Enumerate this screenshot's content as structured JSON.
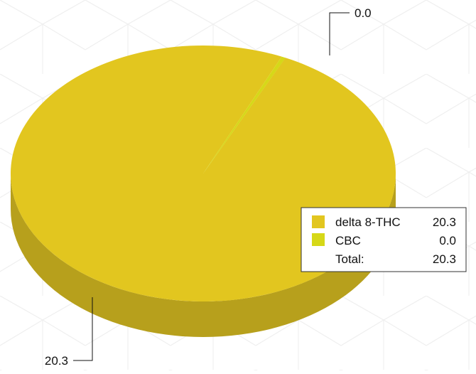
{
  "chart_data": {
    "type": "pie",
    "style": "3d",
    "series": [
      {
        "name": "delta 8-THC",
        "value": 20.3,
        "value_label": "20.3",
        "color": "#e2c61f",
        "side_color": "#b7a01c"
      },
      {
        "name": "CBC",
        "value": 0.0,
        "value_label": "0.0",
        "color": "#d6d818",
        "side_color": "#a8ab12"
      }
    ],
    "total_label": "Total:",
    "total_value": "20.3",
    "legend_placement": "right"
  }
}
